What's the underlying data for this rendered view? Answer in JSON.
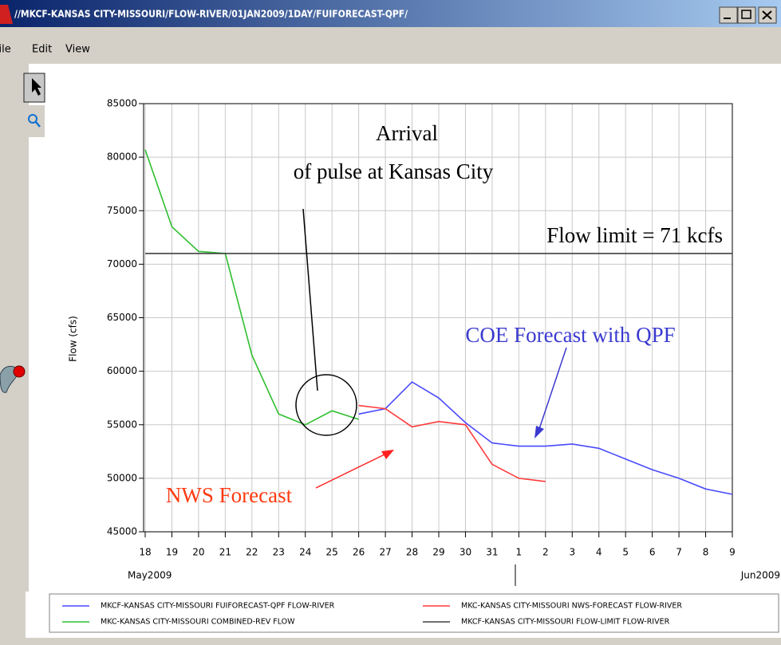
{
  "window": {
    "title": "//MKCF-KANSAS CITY-MISSOURI/FLOW-RIVER/01JAN2009/1DAY/FUIFORECAST-QPF/",
    "menu": [
      "File",
      "Edit",
      "View"
    ]
  },
  "chart_data": {
    "type": "line",
    "y_label": "Flow (cfs)",
    "x_month_labels": [
      "May2009",
      "Jun2009"
    ],
    "annotations": [
      "Arrival",
      "of pulse at Kansas City",
      "Flow limit = 71 kcfs",
      "COE Forecast with QPF",
      "NWS Forecast"
    ],
    "xlim": [
      "2009-05-18",
      "2009-06-09"
    ],
    "xticks": [
      {
        "value": "2009-05-18",
        "label": "18"
      },
      {
        "value": "2009-05-19",
        "label": "19"
      },
      {
        "value": "2009-05-20",
        "label": "20"
      },
      {
        "value": "2009-05-21",
        "label": "21"
      },
      {
        "value": "2009-05-22",
        "label": "22"
      },
      {
        "value": "2009-05-23",
        "label": "23"
      },
      {
        "value": "2009-05-24",
        "label": "24"
      },
      {
        "value": "2009-05-25",
        "label": "25"
      },
      {
        "value": "2009-05-26",
        "label": "26"
      },
      {
        "value": "2009-05-27",
        "label": "27"
      },
      {
        "value": "2009-05-28",
        "label": "28"
      },
      {
        "value": "2009-05-29",
        "label": "29"
      },
      {
        "value": "2009-05-30",
        "label": "30"
      },
      {
        "value": "2009-05-31",
        "label": "31"
      },
      {
        "value": "2009-06-01",
        "label": "1"
      },
      {
        "value": "2009-06-02",
        "label": "2"
      },
      {
        "value": "2009-06-03",
        "label": "3"
      },
      {
        "value": "2009-06-04",
        "label": "4"
      },
      {
        "value": "2009-06-05",
        "label": "5"
      },
      {
        "value": "2009-06-06",
        "label": "6"
      },
      {
        "value": "2009-06-07",
        "label": "7"
      },
      {
        "value": "2009-06-08",
        "label": "8"
      },
      {
        "value": "2009-06-09",
        "label": "9"
      }
    ],
    "ylim": [
      45000,
      85000
    ],
    "yticks": [
      45000,
      50000,
      55000,
      60000,
      65000,
      70000,
      75000,
      80000,
      85000
    ],
    "grid": true,
    "series": [
      {
        "name": "MKCF-KANSAS CITY-MISSOURI FUIFORECAST-QPF FLOW-RIVER",
        "color": "#4a4aff",
        "x": [
          "2009-05-26",
          "2009-05-27",
          "2009-05-28",
          "2009-05-29",
          "2009-05-30",
          "2009-05-31",
          "2009-06-01",
          "2009-06-02",
          "2009-06-03",
          "2009-06-04",
          "2009-06-05",
          "2009-06-06",
          "2009-06-07",
          "2009-06-08",
          "2009-06-09"
        ],
        "values": [
          56000,
          56500,
          59000,
          57500,
          55200,
          53300,
          53000,
          53000,
          53200,
          52800,
          51800,
          50800,
          50000,
          49000,
          48500
        ]
      },
      {
        "name": "MKC-KANSAS CITY-MISSOURI NWS-FORECAST FLOW-RIVER",
        "color": "#ff3a3a",
        "x": [
          "2009-05-26",
          "2009-05-27",
          "2009-05-28",
          "2009-05-29",
          "2009-05-30",
          "2009-05-31",
          "2009-06-01",
          "2009-06-02"
        ],
        "values": [
          56800,
          56500,
          54800,
          55300,
          55000,
          51300,
          50000,
          49700
        ]
      },
      {
        "name": "MKC-KANSAS CITY-MISSOURI COMBINED-REV FLOW",
        "color": "#2fbf2f",
        "x": [
          "2009-05-18",
          "2009-05-19",
          "2009-05-20",
          "2009-05-21",
          "2009-05-22",
          "2009-05-23",
          "2009-05-24",
          "2009-05-25",
          "2009-05-26"
        ],
        "values": [
          80700,
          73500,
          71200,
          71000,
          61500,
          56000,
          55000,
          56300,
          55500
        ]
      },
      {
        "name": "MKCF-KANSAS CITY-MISSOURI FLOW-LIMIT FLOW-RIVER",
        "color": "#404040",
        "x": [
          "2009-05-18",
          "2009-06-09"
        ],
        "values": [
          71000,
          71000
        ]
      }
    ]
  }
}
